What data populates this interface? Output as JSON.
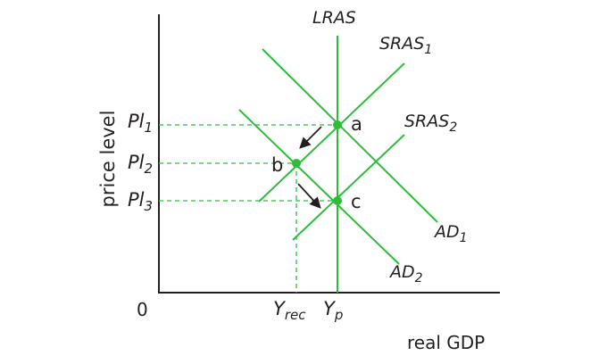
{
  "diagram": {
    "axes": {
      "ylabel": "price level",
      "xlabel": "real GDP",
      "origin": "0"
    },
    "curves": {
      "lras": {
        "label": "LRAS",
        "color": "#2ebd3a"
      },
      "sras1": {
        "label": "SRAS",
        "sub": "1",
        "color": "#2ebd3a"
      },
      "sras2": {
        "label": "SRAS",
        "sub": "2",
        "color": "#2ebd3a"
      },
      "ad1": {
        "label": "AD",
        "sub": "1",
        "color": "#2ebd3a"
      },
      "ad2": {
        "label": "AD",
        "sub": "2",
        "color": "#2ebd3a"
      }
    },
    "points": {
      "a": "a",
      "b": "b",
      "c": "c"
    },
    "price_levels": [
      {
        "label": "Pl",
        "sub": "1"
      },
      {
        "label": "Pl",
        "sub": "2"
      },
      {
        "label": "Pl",
        "sub": "3"
      }
    ],
    "outputs": {
      "yrec": {
        "label": "Y",
        "sub": "rec"
      },
      "yp": {
        "label": "Y",
        "sub": "p"
      }
    },
    "colors": {
      "curve": "#2ebd3a",
      "guide": "#2ebd3a",
      "axis": "#231f20",
      "arrow": "#231f20"
    }
  }
}
